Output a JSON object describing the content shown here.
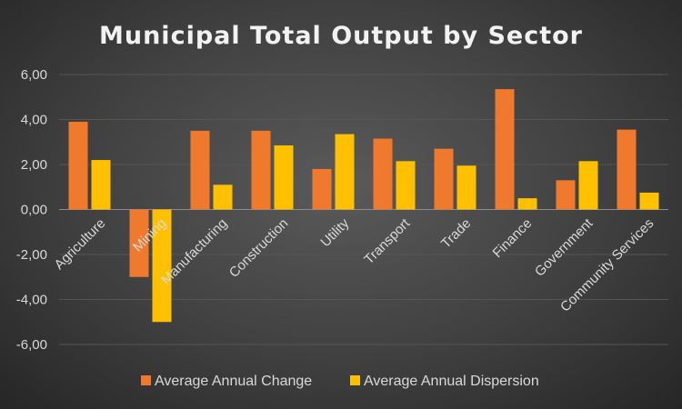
{
  "chart_data": {
    "type": "bar",
    "title": "Municipal Total Output by Sector",
    "categories": [
      "Agriculture",
      "Mining",
      "Manufacturing",
      "Construction",
      "Utility",
      "Transport",
      "Trade",
      "Finance",
      "Government",
      "Community Services"
    ],
    "series": [
      {
        "name": "Average Annual Change",
        "color": "#ef7a2e",
        "values": [
          3.9,
          -3.0,
          3.5,
          3.5,
          1.8,
          3.15,
          2.7,
          5.35,
          1.3,
          3.55
        ]
      },
      {
        "name": "Average Annual Dispersion",
        "color": "#ffc000",
        "values": [
          2.2,
          -5.0,
          1.1,
          2.85,
          3.35,
          2.15,
          1.95,
          0.5,
          2.15,
          0.75
        ]
      }
    ],
    "y_ticks": [
      "6,00",
      "4,00",
      "2,00",
      "0,00",
      "-2,00",
      "-4,00",
      "-6,00"
    ],
    "ylim": [
      -6,
      6
    ],
    "grid": true,
    "legend_position": "bottom"
  }
}
